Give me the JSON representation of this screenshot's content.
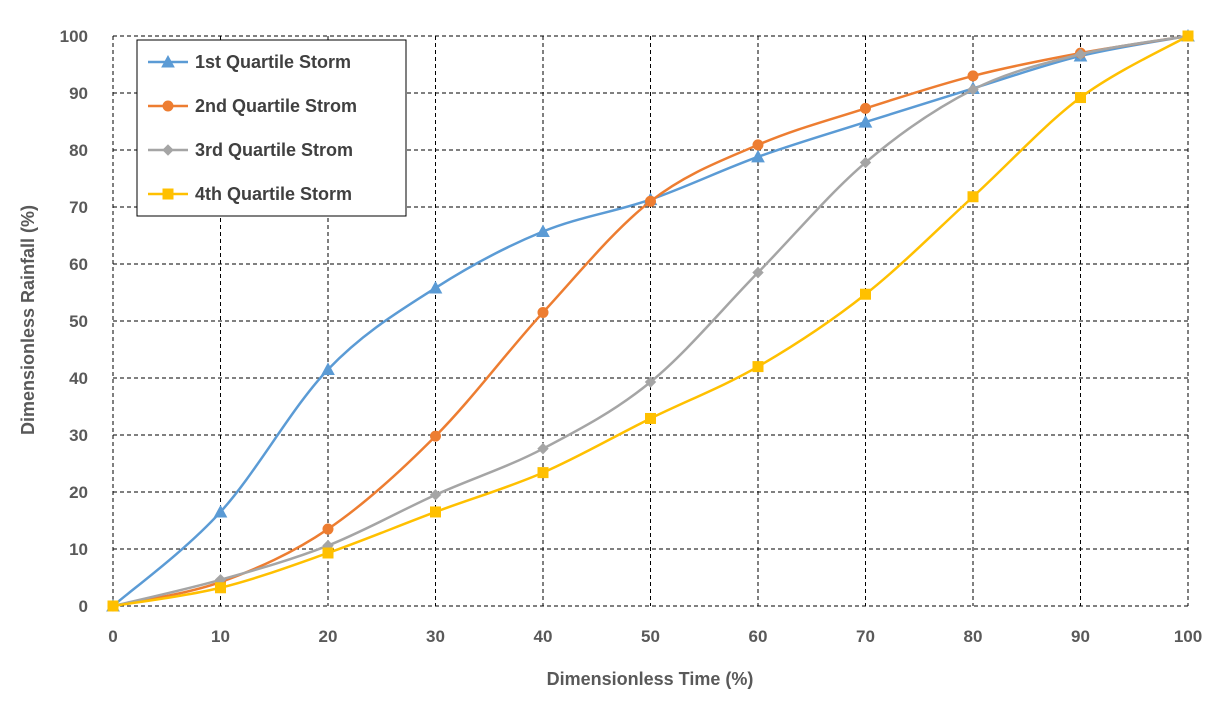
{
  "chart_data": {
    "type": "line",
    "title": "",
    "xlabel": "Dimensionless Time (%)",
    "ylabel": "Dimensionless Rainfall (%)",
    "xlim": [
      0,
      100
    ],
    "ylim": [
      0,
      100
    ],
    "x_ticks": [
      0,
      10,
      20,
      30,
      40,
      50,
      60,
      70,
      80,
      90,
      100
    ],
    "y_ticks": [
      0,
      10,
      20,
      30,
      40,
      50,
      60,
      70,
      80,
      90,
      100
    ],
    "grid": true,
    "legend_position": "top-left",
    "x": [
      0,
      10,
      20,
      30,
      40,
      50,
      60,
      70,
      80,
      90,
      100
    ],
    "series": [
      {
        "name": "1st Quartile Storm",
        "marker": "triangle",
        "color": "#5B9BD5",
        "values": [
          0,
          16.5,
          41.5,
          55.8,
          65.7,
          71.3,
          78.8,
          84.9,
          90.8,
          96.5,
          100
        ]
      },
      {
        "name": "2nd Quartile Strom",
        "marker": "circle",
        "color": "#ED7D31",
        "values": [
          0,
          4.2,
          13.5,
          29.8,
          51.5,
          71.0,
          80.9,
          87.3,
          93.0,
          97.0,
          100
        ]
      },
      {
        "name": "3rd Quartile Strom",
        "marker": "diamond",
        "color": "#A5A5A5",
        "values": [
          0,
          4.6,
          10.6,
          19.5,
          27.6,
          39.3,
          58.5,
          77.8,
          90.6,
          96.8,
          100
        ]
      },
      {
        "name": "4th Quartile Storm",
        "marker": "square",
        "color": "#FFC000",
        "values": [
          0,
          3.2,
          9.3,
          16.5,
          23.4,
          32.9,
          42.0,
          54.7,
          71.8,
          89.2,
          100
        ]
      }
    ]
  }
}
